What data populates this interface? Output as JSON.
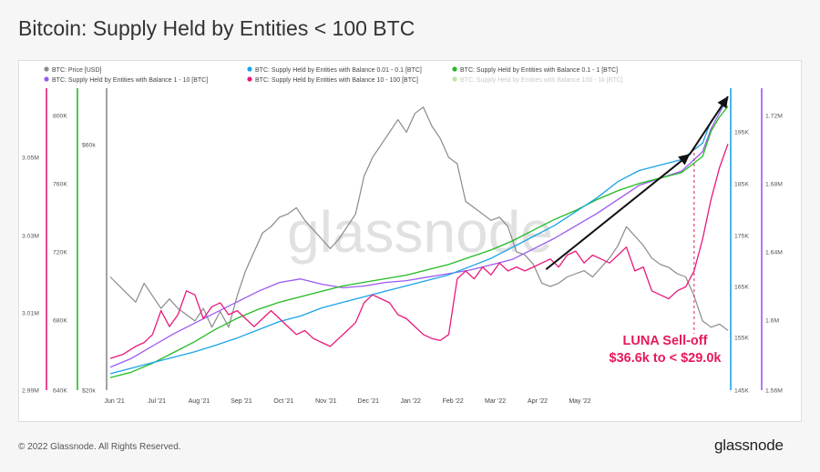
{
  "page": {
    "title": "Bitcoin: Supply Held by Entities < 100 BTC",
    "copyright": "© 2022 Glassnode. All Rights Reserved.",
    "brand": "glassnode",
    "watermark": "glassnode"
  },
  "colors": {
    "price": "#8a8a8a",
    "b0_01": "#1aa3e8",
    "b0_1": "#22bb22",
    "b1_10": "#9b59f0",
    "b10_100": "#e8197a",
    "b100_1k": "#9ae07a",
    "annotation": "#e8195a"
  },
  "chart_data": {
    "type": "line",
    "legend": [
      {
        "label": "BTC: Price [USD]",
        "color": "#8a8a8a"
      },
      {
        "label": "BTC: Supply Held by Entities with Balance 0.01 - 0.1 [BTC]",
        "color": "#1aa3e8"
      },
      {
        "label": "BTC: Supply Held by Entities with Balance 0.1 - 1 [BTC]",
        "color": "#22bb22"
      },
      {
        "label": "BTC: Supply Held by Entities with Balance 1 - 10 [BTC]",
        "color": "#9b59f0"
      },
      {
        "label": "BTC: Supply Held by Entities with Balance 10 - 100 [BTC]",
        "color": "#e8197a"
      },
      {
        "label": "BTC: Supply Held by Entities with Balance 100 - 1k [BTC]",
        "color": "#b9e6a8"
      }
    ],
    "x_ticks": [
      "Jun '21",
      "Jul '21",
      "Aug '21",
      "Sep '21",
      "Oct '21",
      "Nov '21",
      "Dec '21",
      "Jan '22",
      "Feb '22",
      "Mar '22",
      "Apr '22",
      "May '22"
    ],
    "axes": {
      "b10_100": {
        "color": "#e8197a",
        "ticks": [
          "3.05M",
          "3.03M",
          "3.01M",
          "2.99M"
        ],
        "range": [
          2.99,
          3.066
        ]
      },
      "b0_1": {
        "color": "#22bb22",
        "ticks": [
          "800K",
          "760K",
          "720K",
          "680K",
          "640K"
        ],
        "range": [
          640,
          808
        ]
      },
      "price": {
        "color": "#8a8a8a",
        "ticks": [
          "$60k",
          "$20k"
        ],
        "range": [
          20,
          68
        ]
      },
      "b0_01": {
        "color": "#1aa3e8",
        "ticks": [
          "195K",
          "185K",
          "175K",
          "165K",
          "155K",
          "145K"
        ],
        "range": [
          145,
          200
        ]
      },
      "b1_10": {
        "color": "#9b59f0",
        "ticks": [
          "1.72M",
          "1.68M",
          "1.64M",
          "1.6M",
          "1.56M"
        ],
        "range": [
          1.56,
          1.731
        ]
      }
    },
    "series": [
      {
        "key": "price",
        "name": "BTC: Price [USD]",
        "axis": "price",
        "unit": "$k",
        "values": [
          [
            0,
            38
          ],
          [
            0.3,
            36
          ],
          [
            0.6,
            34
          ],
          [
            0.8,
            37
          ],
          [
            1.0,
            35
          ],
          [
            1.2,
            33
          ],
          [
            1.4,
            34.5
          ],
          [
            1.6,
            33
          ],
          [
            1.8,
            32
          ],
          [
            2.0,
            31
          ],
          [
            2.2,
            33
          ],
          [
            2.4,
            30
          ],
          [
            2.6,
            32.5
          ],
          [
            2.8,
            30
          ],
          [
            3.0,
            35
          ],
          [
            3.2,
            39
          ],
          [
            3.4,
            42
          ],
          [
            3.6,
            45
          ],
          [
            3.8,
            46
          ],
          [
            4.0,
            47.5
          ],
          [
            4.2,
            48
          ],
          [
            4.4,
            49
          ],
          [
            4.6,
            47
          ],
          [
            4.8,
            45.5
          ],
          [
            5.0,
            44
          ],
          [
            5.2,
            42.5
          ],
          [
            5.4,
            44
          ],
          [
            5.6,
            46
          ],
          [
            5.8,
            48
          ],
          [
            6.0,
            54
          ],
          [
            6.2,
            57
          ],
          [
            6.4,
            59
          ],
          [
            6.6,
            61
          ],
          [
            6.8,
            63
          ],
          [
            7.0,
            61
          ],
          [
            7.2,
            64
          ],
          [
            7.4,
            65
          ],
          [
            7.6,
            62
          ],
          [
            7.8,
            60
          ],
          [
            8.0,
            57
          ],
          [
            8.2,
            56
          ],
          [
            8.4,
            50
          ],
          [
            8.6,
            49
          ],
          [
            8.8,
            48
          ],
          [
            9.0,
            47
          ],
          [
            9.2,
            47.5
          ],
          [
            9.4,
            46
          ],
          [
            9.6,
            42
          ],
          [
            9.8,
            41.5
          ],
          [
            10.0,
            40
          ],
          [
            10.2,
            37
          ],
          [
            10.4,
            36.5
          ],
          [
            10.6,
            37
          ],
          [
            10.8,
            38
          ],
          [
            11.0,
            38.5
          ],
          [
            11.2,
            39
          ],
          [
            11.4,
            38
          ],
          [
            11.6,
            39.5
          ],
          [
            11.8,
            41
          ],
          [
            12.0,
            43
          ],
          [
            12.2,
            46
          ],
          [
            12.4,
            44.5
          ],
          [
            12.6,
            43
          ],
          [
            12.8,
            41
          ],
          [
            13.0,
            40
          ],
          [
            13.2,
            39.5
          ],
          [
            13.4,
            38.5
          ],
          [
            13.6,
            38
          ],
          [
            13.8,
            35
          ],
          [
            14.0,
            31
          ],
          [
            14.2,
            30
          ],
          [
            14.4,
            30.5
          ],
          [
            14.6,
            29.5
          ]
        ]
      },
      {
        "key": "b0_01",
        "name": "BTC: Supply Held by Entities with Balance 0.01 - 0.1 [BTC]",
        "axis": "b0_01",
        "unit": "K BTC",
        "values": [
          [
            0,
            148
          ],
          [
            0.5,
            149
          ],
          [
            1.0,
            150
          ],
          [
            1.5,
            151
          ],
          [
            2.0,
            152
          ],
          [
            2.5,
            153.2
          ],
          [
            3.0,
            154.5
          ],
          [
            3.5,
            156
          ],
          [
            4.0,
            157.5
          ],
          [
            4.5,
            158.5
          ],
          [
            5.0,
            160
          ],
          [
            5.5,
            161
          ],
          [
            6.0,
            162
          ],
          [
            6.5,
            163
          ],
          [
            7.0,
            164
          ],
          [
            7.5,
            165
          ],
          [
            8.0,
            166
          ],
          [
            8.5,
            167.5
          ],
          [
            9.0,
            169
          ],
          [
            9.5,
            171
          ],
          [
            10.0,
            173
          ],
          [
            10.5,
            175
          ],
          [
            11.0,
            177.5
          ],
          [
            11.5,
            180
          ],
          [
            12.0,
            183
          ],
          [
            12.5,
            185
          ],
          [
            13.0,
            186
          ],
          [
            13.5,
            187
          ],
          [
            14.0,
            190
          ],
          [
            14.2,
            194
          ],
          [
            14.4,
            196
          ],
          [
            14.6,
            198
          ]
        ]
      },
      {
        "key": "b0_1",
        "name": "BTC: Supply Held by Entities with Balance 0.1 - 1 [BTC]",
        "axis": "b0_1",
        "unit": "K BTC",
        "values": [
          [
            0,
            647
          ],
          [
            0.5,
            650
          ],
          [
            1.0,
            655
          ],
          [
            1.5,
            661
          ],
          [
            2.0,
            667
          ],
          [
            2.5,
            674
          ],
          [
            3.0,
            680
          ],
          [
            3.5,
            685
          ],
          [
            4.0,
            689
          ],
          [
            4.5,
            692
          ],
          [
            5.0,
            695
          ],
          [
            5.5,
            698
          ],
          [
            6.0,
            700
          ],
          [
            6.5,
            702
          ],
          [
            7.0,
            704
          ],
          [
            7.5,
            707
          ],
          [
            8.0,
            710
          ],
          [
            8.5,
            714
          ],
          [
            9.0,
            718
          ],
          [
            9.5,
            723
          ],
          [
            10.0,
            729
          ],
          [
            10.5,
            735
          ],
          [
            11.0,
            740
          ],
          [
            11.5,
            746
          ],
          [
            12.0,
            751
          ],
          [
            12.5,
            755
          ],
          [
            13.0,
            758
          ],
          [
            13.5,
            761
          ],
          [
            14.0,
            770
          ],
          [
            14.2,
            784
          ],
          [
            14.4,
            792
          ],
          [
            14.6,
            798
          ]
        ]
      },
      {
        "key": "b1_10",
        "name": "BTC: Supply Held by Entities with Balance 1 - 10 [BTC]",
        "axis": "b1_10",
        "unit": "M BTC",
        "values": [
          [
            0,
            1.573
          ],
          [
            0.5,
            1.578
          ],
          [
            1.0,
            1.585
          ],
          [
            1.5,
            1.592
          ],
          [
            2.0,
            1.598
          ],
          [
            2.5,
            1.604
          ],
          [
            3.0,
            1.61
          ],
          [
            3.5,
            1.616
          ],
          [
            4.0,
            1.621
          ],
          [
            4.5,
            1.623
          ],
          [
            5.0,
            1.62
          ],
          [
            5.5,
            1.618
          ],
          [
            6.0,
            1.619
          ],
          [
            6.5,
            1.621
          ],
          [
            7.0,
            1.622
          ],
          [
            7.5,
            1.624
          ],
          [
            8.0,
            1.626
          ],
          [
            8.5,
            1.628
          ],
          [
            9.0,
            1.631
          ],
          [
            9.5,
            1.634
          ],
          [
            10.0,
            1.64
          ],
          [
            10.5,
            1.646
          ],
          [
            11.0,
            1.653
          ],
          [
            11.5,
            1.66
          ],
          [
            12.0,
            1.668
          ],
          [
            12.5,
            1.676
          ],
          [
            13.0,
            1.68
          ],
          [
            13.5,
            1.684
          ],
          [
            14.0,
            1.695
          ],
          [
            14.2,
            1.708
          ],
          [
            14.4,
            1.717
          ],
          [
            14.6,
            1.726
          ]
        ]
      },
      {
        "key": "b10_100",
        "name": "BTC: Supply Held by Entities with Balance 10 - 100 [BTC]",
        "axis": "b10_100",
        "unit": "M BTC",
        "values": [
          [
            0,
            2.998
          ],
          [
            0.3,
            2.999
          ],
          [
            0.6,
            3.001
          ],
          [
            0.8,
            3.002
          ],
          [
            1.0,
            3.004
          ],
          [
            1.2,
            3.01
          ],
          [
            1.4,
            3.006
          ],
          [
            1.6,
            3.009
          ],
          [
            1.8,
            3.015
          ],
          [
            2.0,
            3.014
          ],
          [
            2.2,
            3.008
          ],
          [
            2.4,
            3.011
          ],
          [
            2.6,
            3.012
          ],
          [
            2.8,
            3.009
          ],
          [
            3.0,
            3.01
          ],
          [
            3.2,
            3.008
          ],
          [
            3.4,
            3.006
          ],
          [
            3.6,
            3.008
          ],
          [
            3.8,
            3.01
          ],
          [
            4.0,
            3.008
          ],
          [
            4.2,
            3.006
          ],
          [
            4.4,
            3.004
          ],
          [
            4.6,
            3.005
          ],
          [
            4.8,
            3.003
          ],
          [
            5.0,
            3.002
          ],
          [
            5.2,
            3.001
          ],
          [
            5.4,
            3.003
          ],
          [
            5.6,
            3.005
          ],
          [
            5.8,
            3.007
          ],
          [
            6.0,
            3.012
          ],
          [
            6.2,
            3.014
          ],
          [
            6.4,
            3.013
          ],
          [
            6.6,
            3.012
          ],
          [
            6.8,
            3.009
          ],
          [
            7.0,
            3.008
          ],
          [
            7.2,
            3.006
          ],
          [
            7.4,
            3.004
          ],
          [
            7.6,
            3.003
          ],
          [
            7.8,
            3.0025
          ],
          [
            8.0,
            3.004
          ],
          [
            8.2,
            3.018
          ],
          [
            8.4,
            3.02
          ],
          [
            8.6,
            3.018
          ],
          [
            8.8,
            3.021
          ],
          [
            9.0,
            3.019
          ],
          [
            9.2,
            3.022
          ],
          [
            9.4,
            3.02
          ],
          [
            9.6,
            3.021
          ],
          [
            9.8,
            3.02
          ],
          [
            10.0,
            3.021
          ],
          [
            10.2,
            3.022
          ],
          [
            10.4,
            3.023
          ],
          [
            10.6,
            3.021
          ],
          [
            10.8,
            3.024
          ],
          [
            11.0,
            3.025
          ],
          [
            11.2,
            3.022
          ],
          [
            11.4,
            3.024
          ],
          [
            11.6,
            3.023
          ],
          [
            11.8,
            3.022
          ],
          [
            12.0,
            3.024
          ],
          [
            12.2,
            3.026
          ],
          [
            12.4,
            3.02
          ],
          [
            12.6,
            3.021
          ],
          [
            12.8,
            3.015
          ],
          [
            13.0,
            3.014
          ],
          [
            13.2,
            3.013
          ],
          [
            13.4,
            3.015
          ],
          [
            13.6,
            3.016
          ],
          [
            13.8,
            3.02
          ],
          [
            14.0,
            3.028
          ],
          [
            14.2,
            3.038
          ],
          [
            14.4,
            3.046
          ],
          [
            14.6,
            3.052
          ]
        ]
      },
      {
        "key": "b100_1k",
        "name": "BTC: Supply Held by Entities with Balance 100 - 1k [BTC]",
        "axis": "b1_10",
        "unit": "M BTC",
        "values": []
      }
    ],
    "annotation": {
      "lines": [
        "LUNA Sell-off",
        "$36.6k to < $29.0k"
      ],
      "x": 13.8
    },
    "trend_arrows": [
      {
        "from": [
          10.3,
          167
        ],
        "to": [
          13.7,
          188
        ],
        "axis": "b0_01"
      },
      {
        "from": [
          13.7,
          188
        ],
        "to": [
          14.6,
          198.5
        ],
        "axis": "b0_01"
      }
    ]
  }
}
